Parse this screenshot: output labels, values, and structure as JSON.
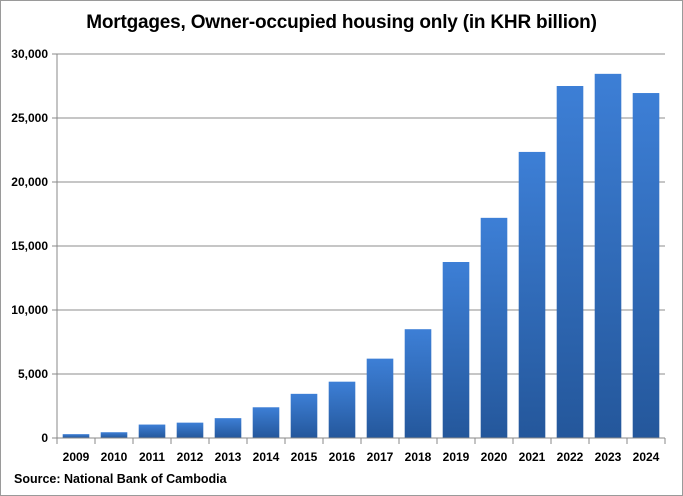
{
  "source": "Source: National Bank of Cambodia",
  "chart_data": {
    "type": "bar",
    "title": "Mortgages, Owner-occupied housing only (in KHR billion)",
    "xlabel": "",
    "ylabel": "",
    "categories": [
      "2009",
      "2010",
      "2011",
      "2012",
      "2013",
      "2014",
      "2015",
      "2016",
      "2017",
      "2018",
      "2019",
      "2020",
      "2021",
      "2022",
      "2023",
      "2024"
    ],
    "values": [
      300,
      450,
      1050,
      1200,
      1550,
      2400,
      3450,
      4400,
      6200,
      8500,
      13750,
      17200,
      22350,
      27500,
      28450,
      26950
    ],
    "ylim": [
      0,
      30000
    ],
    "yticks": [
      0,
      5000,
      10000,
      15000,
      20000,
      25000,
      30000
    ],
    "ytick_labels": [
      "0",
      "5,000",
      "10,000",
      "15,000",
      "20,000",
      "25,000",
      "30,000"
    ],
    "grid": true,
    "legend": "none",
    "colors": {
      "bar_light": "#3d7fd6",
      "bar_dark": "#24579b",
      "grid": "#8c8c8c"
    }
  }
}
